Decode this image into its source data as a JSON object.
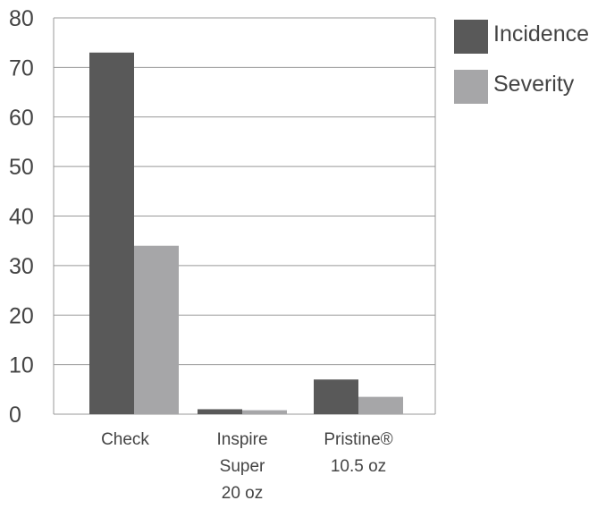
{
  "chart_data": {
    "type": "bar",
    "title": "",
    "xlabel": "",
    "ylabel": "",
    "ylim": [
      0,
      80
    ],
    "yticks": [
      "0",
      "10",
      "20",
      "30",
      "40",
      "50",
      "60",
      "70",
      "80"
    ],
    "grid": true,
    "legend_position": "top-right",
    "categories": [
      [
        "Check"
      ],
      [
        "Inspire",
        "Super",
        "20 oz"
      ],
      [
        "Pristine®",
        "10.5 oz"
      ]
    ],
    "series": [
      {
        "name": "Incidence",
        "color": "#595959",
        "values": [
          73,
          1,
          7
        ]
      },
      {
        "name": "Severity",
        "color": "#a6a6a8",
        "values": [
          34,
          0.8,
          3.5
        ]
      }
    ]
  }
}
